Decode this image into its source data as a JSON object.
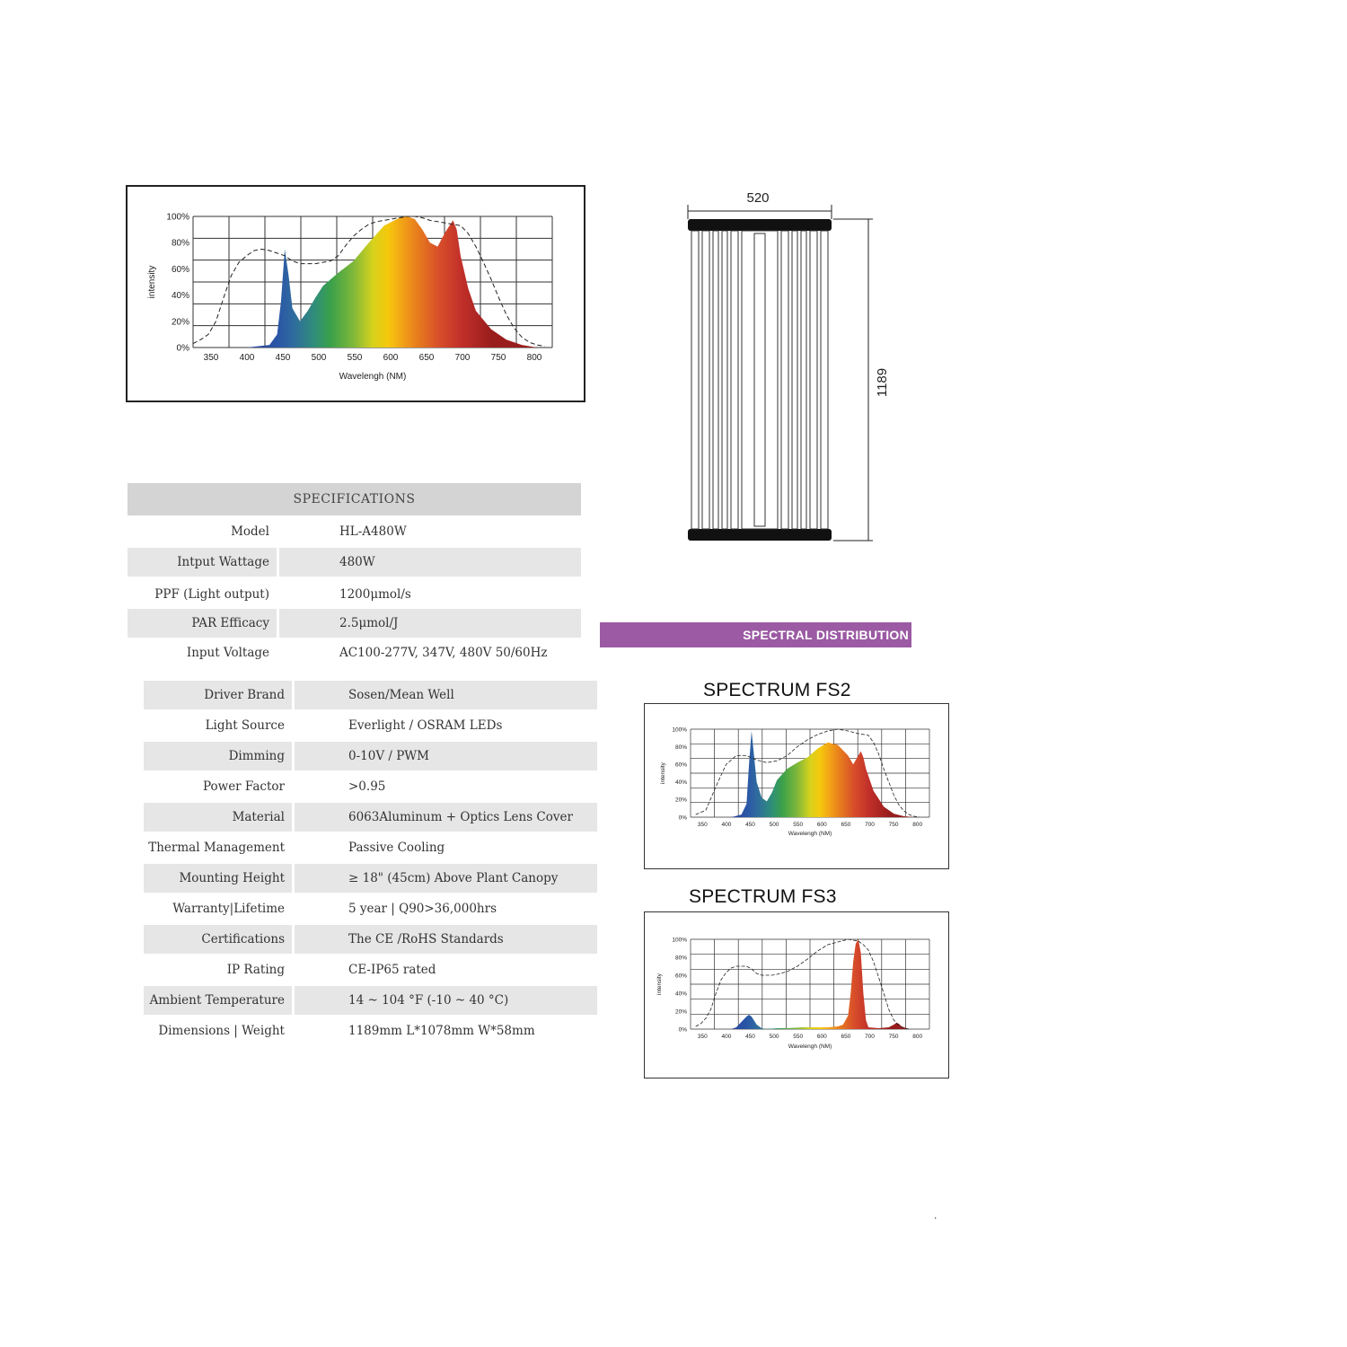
{
  "chart_data": [
    {
      "type": "area",
      "ylabel": "intensity",
      "xlabel": "Wavelengh (NM)",
      "x_ticks": [
        "350",
        "400",
        "450",
        "500",
        "550",
        "600",
        "650",
        "700",
        "750",
        "800"
      ],
      "y_ticks": [
        "0%",
        "20%",
        "40%",
        "60%",
        "80%",
        "100%"
      ],
      "xlim": [
        330,
        800
      ],
      "ylim": [
        0,
        100
      ],
      "grid": true,
      "series": [
        {
          "style": "spectrum-fill",
          "x": [
            335,
            400,
            430,
            440,
            445,
            450,
            455,
            460,
            470,
            480,
            490,
            500,
            520,
            540,
            560,
            580,
            600,
            610,
            620,
            630,
            640,
            650,
            660,
            670,
            675,
            680,
            690,
            700,
            720,
            740,
            760,
            780
          ],
          "y": [
            0,
            0,
            2,
            10,
            35,
            75,
            55,
            30,
            20,
            28,
            38,
            47,
            57,
            66,
            80,
            93,
            99,
            100,
            98,
            90,
            80,
            77,
            88,
            97,
            90,
            70,
            45,
            28,
            14,
            6,
            2,
            0
          ]
        },
        {
          "style": "dashed",
          "x": [
            330,
            340,
            350,
            360,
            370,
            380,
            390,
            400,
            410,
            420,
            430,
            440,
            450,
            460,
            470,
            480,
            490,
            500,
            510,
            520,
            530,
            540,
            550,
            560,
            570,
            580,
            590,
            600,
            610,
            620,
            630,
            640,
            650,
            660,
            670,
            680,
            690,
            700,
            710,
            720,
            730,
            740,
            750,
            760,
            770,
            780,
            790
          ],
          "y": [
            3,
            6,
            10,
            20,
            38,
            55,
            65,
            70,
            74,
            75,
            74,
            72,
            70,
            66,
            64,
            64,
            64,
            65,
            66,
            70,
            78,
            85,
            90,
            94,
            96,
            97,
            98,
            99,
            100,
            100,
            99,
            97,
            96,
            95,
            94,
            93,
            87,
            77,
            65,
            52,
            38,
            25,
            15,
            8,
            4,
            2,
            1
          ]
        }
      ]
    },
    {
      "type": "area",
      "ylabel": "intensity",
      "xlabel": "Wavelengh (NM)",
      "x_ticks": [
        "350",
        "400",
        "450",
        "500",
        "550",
        "600",
        "650",
        "700",
        "750",
        "800"
      ],
      "y_ticks": [
        "0%",
        "20%",
        "40%",
        "60%",
        "80%",
        "100%"
      ],
      "xlim": [
        330,
        800
      ],
      "ylim": [
        0,
        100
      ],
      "grid": true,
      "series": [
        {
          "style": "spectrum-fill",
          "x": [
            410,
            430,
            440,
            445,
            450,
            455,
            460,
            470,
            480,
            490,
            500,
            520,
            540,
            560,
            580,
            600,
            620,
            640,
            650,
            660,
            665,
            670,
            675,
            690,
            710,
            730,
            750,
            770
          ],
          "y": [
            0,
            3,
            15,
            60,
            98,
            70,
            40,
            22,
            18,
            28,
            42,
            55,
            62,
            68,
            78,
            85,
            82,
            70,
            60,
            70,
            75,
            68,
            55,
            30,
            12,
            4,
            1,
            0
          ]
        },
        {
          "style": "dashed",
          "x": [
            340,
            360,
            380,
            400,
            420,
            440,
            460,
            480,
            500,
            520,
            540,
            560,
            580,
            600,
            620,
            640,
            660,
            680,
            690,
            700,
            710,
            720,
            730,
            740,
            750,
            760,
            770,
            780
          ],
          "y": [
            3,
            8,
            35,
            60,
            70,
            70,
            65,
            62,
            64,
            70,
            80,
            88,
            94,
            98,
            100,
            98,
            95,
            93,
            85,
            72,
            55,
            40,
            25,
            14,
            7,
            3,
            1,
            0
          ]
        }
      ]
    },
    {
      "type": "area",
      "ylabel": "intensity",
      "xlabel": "Wavelengh (NM)",
      "x_ticks": [
        "350",
        "400",
        "450",
        "500",
        "550",
        "600",
        "650",
        "700",
        "750",
        "800"
      ],
      "y_ticks": [
        "0%",
        "20%",
        "40%",
        "60%",
        "80%",
        "100%"
      ],
      "xlim": [
        330,
        800
      ],
      "ylim": [
        0,
        100
      ],
      "grid": true,
      "series": [
        {
          "style": "spectrum-fill",
          "x": [
            410,
            420,
            430,
            440,
            445,
            450,
            460,
            470,
            480,
            500,
            520,
            550,
            580,
            600,
            620,
            630,
            640,
            645,
            650,
            655,
            660,
            665,
            670,
            675,
            680,
            700,
            720,
            730,
            735,
            740,
            745,
            760,
            770
          ],
          "y": [
            0,
            2,
            8,
            14,
            16,
            14,
            5,
            1,
            0,
            1,
            1,
            2,
            2,
            2,
            3,
            5,
            15,
            40,
            75,
            95,
            100,
            85,
            40,
            10,
            2,
            1,
            2,
            5,
            7,
            6,
            3,
            0,
            0
          ]
        },
        {
          "style": "dashed",
          "x": [
            340,
            350,
            360,
            370,
            380,
            390,
            400,
            410,
            420,
            430,
            440,
            450,
            460,
            470,
            480,
            490,
            500,
            520,
            540,
            560,
            580,
            600,
            620,
            640,
            660,
            670,
            680,
            690,
            700,
            710,
            720,
            730,
            740,
            750,
            760
          ],
          "y": [
            3,
            6,
            12,
            22,
            40,
            55,
            63,
            68,
            70,
            70,
            70,
            67,
            62,
            60,
            60,
            60,
            61,
            64,
            70,
            78,
            87,
            94,
            97,
            100,
            98,
            94,
            88,
            75,
            58,
            40,
            22,
            10,
            4,
            1,
            0
          ]
        }
      ]
    }
  ],
  "drawing": {
    "width_label": "520",
    "height_label": "1189"
  },
  "specs": {
    "header": "SPECIFICATIONS",
    "rows": [
      {
        "label": "Model",
        "value": "HL-A480W"
      },
      {
        "label": "Intput Wattage",
        "value": "480W"
      },
      {
        "label": "PPF (Light output)",
        "value": "1200μmol/s"
      },
      {
        "label": "PAR Efficacy",
        "value": "2.5μmol/J"
      },
      {
        "label": "Input Voltage",
        "value": "AC100-277V, 347V, 480V 50/60Hz"
      },
      {
        "label": "Driver Brand",
        "value": "Sosen/Mean Well"
      },
      {
        "label": "Light Source",
        "value": "Everlight / OSRAM LEDs"
      },
      {
        "label": "Dimming",
        "value": "0-10V / PWM"
      },
      {
        "label": "Power Factor",
        "value": ">0.95"
      },
      {
        "label": "Material",
        "value": "6063Aluminum + Optics Lens Cover"
      },
      {
        "label": "Thermal Management",
        "value": "Passive Cooling"
      },
      {
        "label": "Mounting Height",
        "value": "≥ 18\" (45cm) Above Plant Canopy"
      },
      {
        "label": "Warranty|Lifetime",
        "value": "5 year | Q90>36,000hrs"
      },
      {
        "label": "Certifications",
        "value": "The CE /RoHS Standards"
      },
      {
        "label": "IP Rating",
        "value": "CE-IP65 rated"
      },
      {
        "label": "Ambient Temperature",
        "value": "14 ~ 104 °F (-10 ~ 40 °C)"
      },
      {
        "label": "Dimensions | Weight",
        "value": "1189mm L*1078mm W*58mm"
      }
    ]
  },
  "section_band": "SPECTRAL DISTRIBUTION",
  "spectrum_titles": [
    "SPECTRUM FS2",
    "SPECTRUM FS3"
  ],
  "footer_mark": "."
}
